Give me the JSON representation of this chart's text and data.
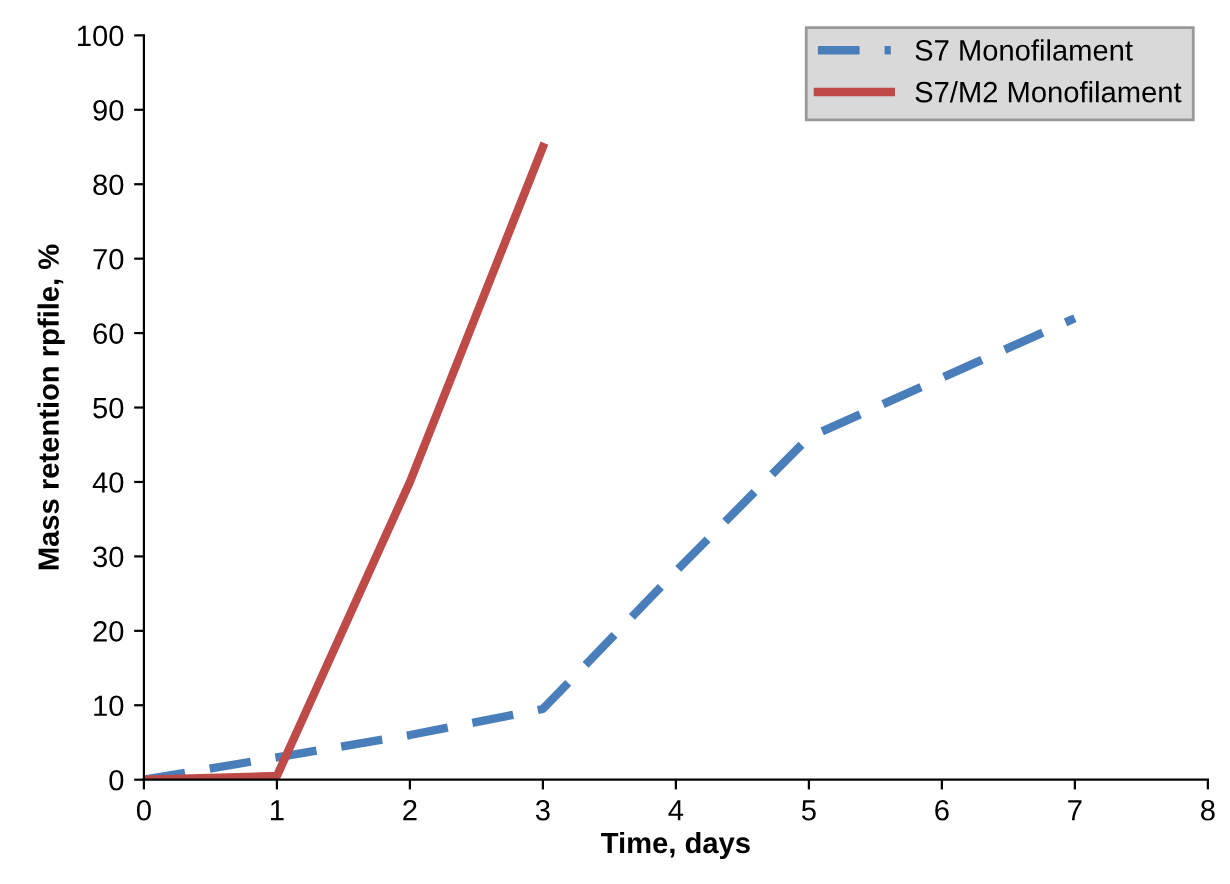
{
  "chart_data": {
    "type": "line",
    "xlabel": "Time, days",
    "ylabel": "Mass retention rpfile, %",
    "xlim": [
      0,
      8
    ],
    "xticks": [
      0,
      1,
      2,
      3,
      4,
      5,
      6,
      7,
      8
    ],
    "ylim": [
      0,
      100
    ],
    "yticks": [
      0,
      10,
      20,
      30,
      40,
      50,
      60,
      70,
      80,
      90,
      100
    ],
    "grid": false,
    "legend": "top right",
    "series": [
      {
        "name": "S7 Monofilament",
        "color": "#4a7ebb",
        "line_style": "dashed",
        "x": [
          0,
          1,
          2,
          3,
          4,
          5,
          6,
          7
        ],
        "values": [
          0,
          3,
          6,
          9.5,
          28,
          46,
          54,
          62
        ]
      },
      {
        "name": "S7/M2 Monofilament",
        "color": "#be4b48",
        "line_style": "solid",
        "x": [
          0,
          1,
          2,
          3
        ],
        "values": [
          0,
          0.5,
          40,
          85
        ]
      }
    ]
  }
}
